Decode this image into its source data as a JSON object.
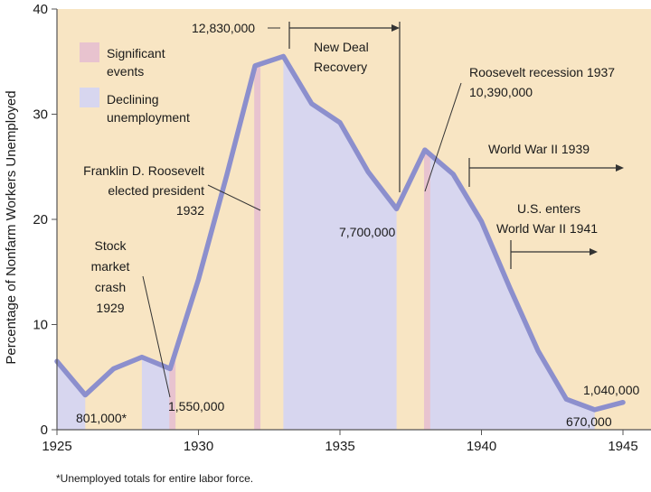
{
  "chart_data": {
    "type": "area",
    "ylabel": "Percentage of Nonfarm Workers Unemployed",
    "xlim": [
      1925,
      1946
    ],
    "ylim": [
      0,
      40
    ],
    "x_ticks": [
      "1925",
      "1930",
      "1935",
      "1940",
      "1945"
    ],
    "y_ticks": [
      "0",
      "10",
      "20",
      "30",
      "40"
    ],
    "series": [
      {
        "values": [
          {
            "x": 1925,
            "y": 6.5
          },
          {
            "x": 1926,
            "y": 3.3
          },
          {
            "x": 1927,
            "y": 5.8
          },
          {
            "x": 1928,
            "y": 6.9
          },
          {
            "x": 1929,
            "y": 5.8
          },
          {
            "x": 1930,
            "y": 14.3
          },
          {
            "x": 1931,
            "y": 24.2
          },
          {
            "x": 1932,
            "y": 34.6
          },
          {
            "x": 1933,
            "y": 35.5
          },
          {
            "x": 1934,
            "y": 31.0
          },
          {
            "x": 1935,
            "y": 29.2
          },
          {
            "x": 1936,
            "y": 24.5
          },
          {
            "x": 1937,
            "y": 21.0
          },
          {
            "x": 1938,
            "y": 26.6
          },
          {
            "x": 1939,
            "y": 24.3
          },
          {
            "x": 1940,
            "y": 19.8
          },
          {
            "x": 1941,
            "y": 13.5
          },
          {
            "x": 1942,
            "y": 7.5
          },
          {
            "x": 1943,
            "y": 2.9
          },
          {
            "x": 1944,
            "y": 1.9
          },
          {
            "x": 1945,
            "y": 2.6
          }
        ]
      }
    ],
    "legend": {
      "placement": "top-left",
      "items": [
        {
          "label_lines": [
            "Significant",
            "events"
          ],
          "color": "#e8c3cf"
        },
        {
          "label_lines": [
            "Declining",
            "unemployment"
          ],
          "color": "#d7d6ef"
        }
      ]
    },
    "significant_event_bands": [
      {
        "x": 1929
      },
      {
        "x": 1932
      },
      {
        "x": 1938
      }
    ],
    "declining_unemployment_bands": [
      {
        "from": 1925,
        "to": 1926
      },
      {
        "from": 1928,
        "to": 1929
      },
      {
        "from": 1933,
        "to": 1937
      },
      {
        "from": 1938,
        "to": 1944
      }
    ],
    "annotations": [
      {
        "lines": [
          "12,830,000"
        ]
      },
      {
        "lines": [
          "New Deal",
          "Recovery"
        ]
      },
      {
        "lines": [
          "Roosevelt recession 1937",
          "10,390,000"
        ]
      },
      {
        "lines": [
          "World War II 1939"
        ]
      },
      {
        "lines": [
          "U.S. enters",
          "World War II 1941"
        ]
      },
      {
        "lines": [
          "Franklin D. Roosevelt",
          "elected president",
          "1932"
        ]
      },
      {
        "lines": [
          "7,700,000"
        ]
      },
      {
        "lines": [
          "Stock",
          "market",
          "crash",
          "1929"
        ]
      },
      {
        "lines": [
          "1,550,000"
        ]
      },
      {
        "lines": [
          "801,000*"
        ]
      },
      {
        "lines": [
          "1,040,000"
        ]
      },
      {
        "lines": [
          "670,000"
        ]
      }
    ],
    "footnote": "*Unemployed totals for entire labor force.",
    "colors": {
      "background": "#f8e5c3",
      "line": "#8c8fcd",
      "declining_fill": "#d7d6ef",
      "event_fill": "#e8c3cf"
    }
  }
}
